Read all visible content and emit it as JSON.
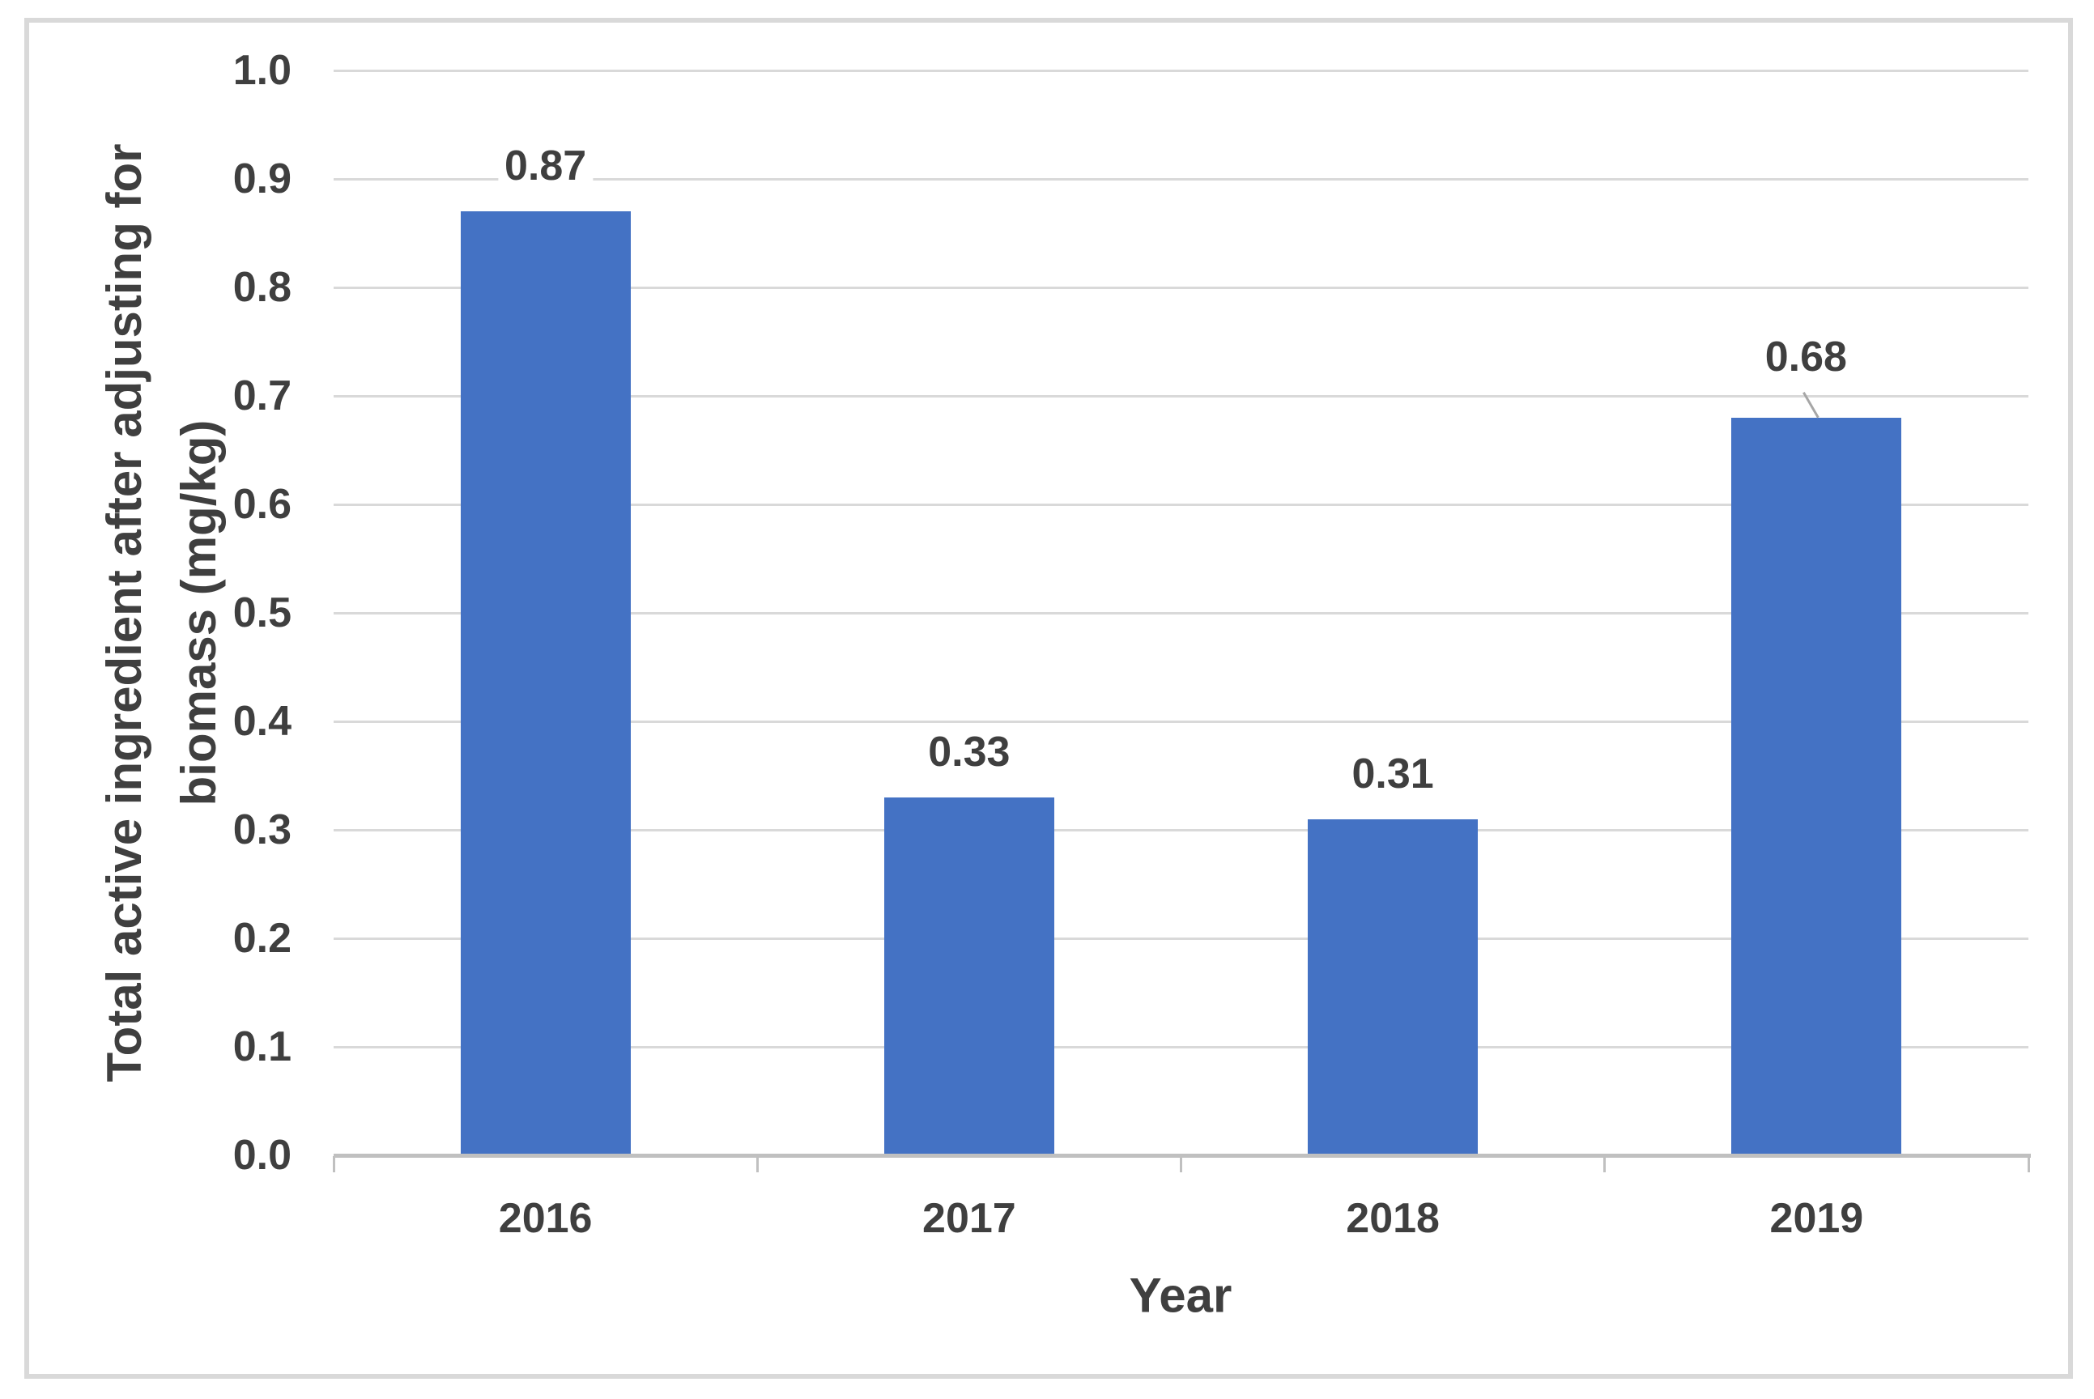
{
  "figure": {
    "background": "#FFFFFF",
    "border_color": "#D9D9D9"
  },
  "chart_data": {
    "type": "bar",
    "title": "",
    "categories": [
      "2016",
      "2017",
      "2018",
      "2019"
    ],
    "values": [
      0.87,
      0.33,
      0.31,
      0.68
    ],
    "data_labels": [
      "0.87",
      "0.33",
      "0.31",
      "0.68"
    ],
    "xlabel": "Year",
    "ylabel": "Total active ingredient after adjusting for biomass (mg/kg)",
    "ylabel_lines": [
      "Total active ingredient after adjusting for",
      "biomass (mg/kg)"
    ],
    "ylim": [
      0.0,
      1.0
    ],
    "yticks": [
      "0.0",
      "0.1",
      "0.2",
      "0.3",
      "0.4",
      "0.5",
      "0.6",
      "0.7",
      "0.8",
      "0.9",
      "1.0"
    ],
    "grid": "horizontal",
    "legend": "none",
    "bar_color": "#4472C4",
    "gridline_color": "#D9D9D9",
    "axis_line_color": "#C0C0C0",
    "text_color": "#3F3F3F",
    "moved_label": {
      "category": "2019",
      "index": 3,
      "dx": -13,
      "dy": -19,
      "leader_line": true,
      "leader_color": "#A6A6A6"
    }
  }
}
